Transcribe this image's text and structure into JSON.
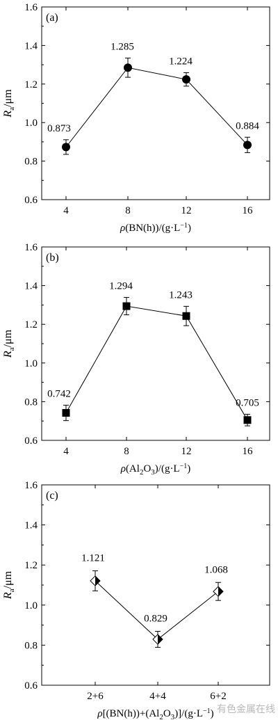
{
  "watermark": "有色金属在线",
  "chart_data": [
    {
      "type": "line",
      "panel_label": "(a)",
      "categories": [
        "4",
        "8",
        "12",
        "16"
      ],
      "series": [
        {
          "values": [
            0.873,
            1.285,
            1.224,
            0.884
          ],
          "errors": [
            0.038,
            0.05,
            0.035,
            0.04
          ]
        }
      ],
      "value_labels": [
        "0.873",
        "1.285",
        "1.224",
        "0.884"
      ],
      "marker": "circle",
      "ylabel": "Ra/μm",
      "ylabel_parts": {
        "sym": "R",
        "sub": "a",
        "unit": "/μm"
      },
      "xlabel": "ρ(BN(h))/(g·L−1)",
      "xlabel_parts": [
        {
          "t": "ρ",
          "style": "italic"
        },
        {
          "t": "(BN(h))/(g·L"
        },
        {
          "t": "−1",
          "style": "sup"
        },
        {
          "t": ")"
        }
      ],
      "ylim": [
        0.6,
        1.6
      ],
      "yticks": [
        "0.6",
        "0.8",
        "1.0",
        "1.2",
        "1.4",
        "1.6"
      ],
      "grid": false
    },
    {
      "type": "line",
      "panel_label": "(b)",
      "categories": [
        "4",
        "8",
        "12",
        "16"
      ],
      "series": [
        {
          "values": [
            0.742,
            1.294,
            1.243,
            0.705
          ],
          "errors": [
            0.04,
            0.045,
            0.05,
            0.03
          ]
        }
      ],
      "value_labels": [
        "0.742",
        "1.294",
        "1.243",
        "0.705"
      ],
      "marker": "square",
      "ylabel": "Ra/μm",
      "ylabel_parts": {
        "sym": "R",
        "sub": "a",
        "unit": "/μm"
      },
      "xlabel": "ρ(Al2O3)/(g·L−1)",
      "xlabel_parts": [
        {
          "t": "ρ",
          "style": "italic"
        },
        {
          "t": "(Al"
        },
        {
          "t": "2",
          "style": "sub"
        },
        {
          "t": "O"
        },
        {
          "t": "3",
          "style": "sub"
        },
        {
          "t": ")/(g·L"
        },
        {
          "t": "−1",
          "style": "sup"
        },
        {
          "t": ")"
        }
      ],
      "ylim": [
        0.6,
        1.6
      ],
      "yticks": [
        "0.6",
        "0.8",
        "1.0",
        "1.2",
        "1.4",
        "1.6"
      ],
      "grid": false
    },
    {
      "type": "line",
      "panel_label": "(c)",
      "categories": [
        "2+6",
        "4+4",
        "6+2"
      ],
      "series": [
        {
          "values": [
            1.121,
            0.829,
            1.068
          ],
          "errors": [
            0.05,
            0.04,
            0.045
          ]
        }
      ],
      "value_labels": [
        "1.121",
        "0.829",
        "1.068"
      ],
      "marker": "half-diamond",
      "ylabel": "Ra/μm",
      "ylabel_parts": {
        "sym": "R",
        "sub": "a",
        "unit": "/μm"
      },
      "xlabel": "ρ[(BN(h))+(Al2O3)]/(g·L−1)",
      "xlabel_parts": [
        {
          "t": "ρ",
          "style": "italic"
        },
        {
          "t": "[(BN(h))+(Al"
        },
        {
          "t": "2",
          "style": "sub"
        },
        {
          "t": "O"
        },
        {
          "t": "3",
          "style": "sub"
        },
        {
          "t": ")]/(g·L"
        },
        {
          "t": "−1",
          "style": "sup"
        },
        {
          "t": ")"
        }
      ],
      "ylim": [
        0.6,
        1.6
      ],
      "yticks": [
        "0.6",
        "0.8",
        "1.0",
        "1.2",
        "1.4",
        "1.6"
      ],
      "grid": false
    }
  ]
}
